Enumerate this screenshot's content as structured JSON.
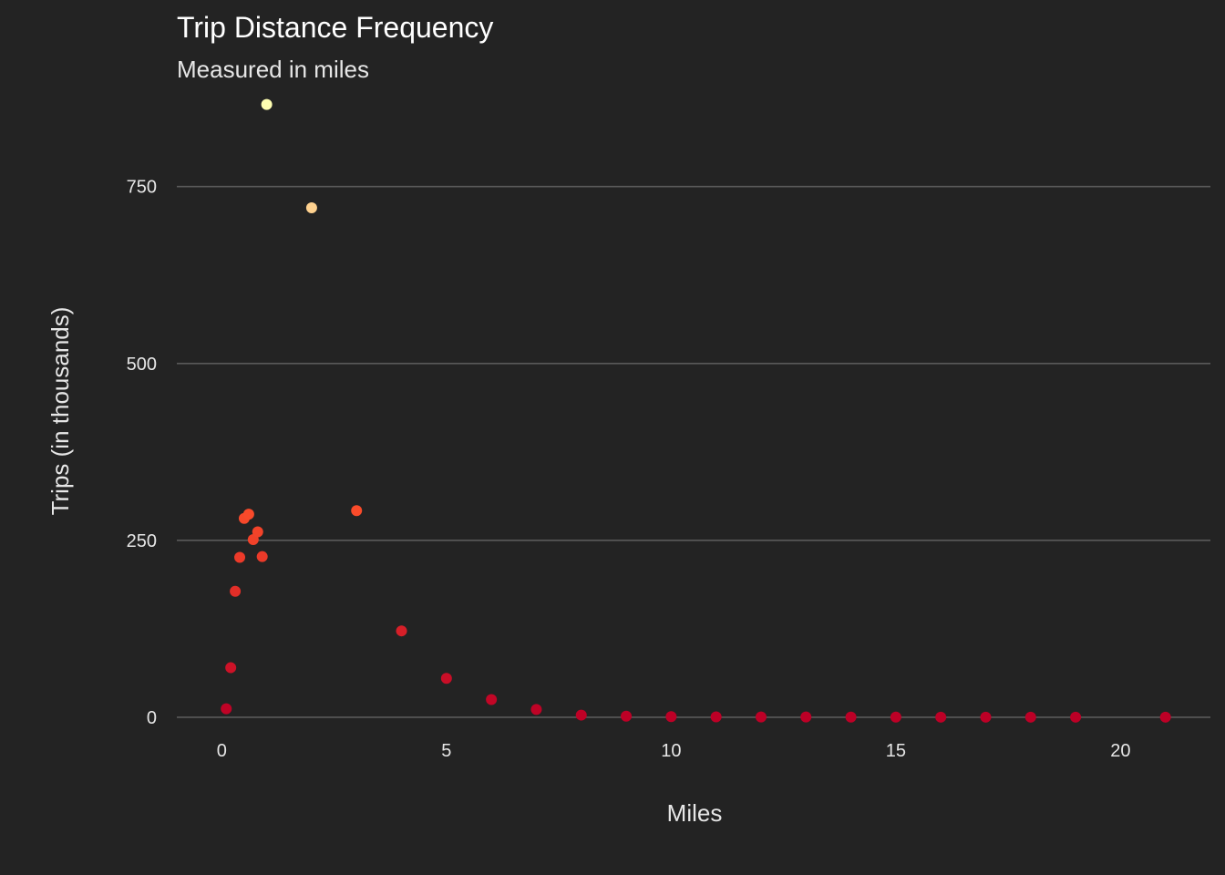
{
  "chart_data": {
    "type": "scatter",
    "title": "Trip Distance Frequency",
    "subtitle": "Measured in miles",
    "xlabel": "Miles",
    "ylabel": "Trips (in thousands)",
    "xlim": [
      -1,
      22
    ],
    "ylim": [
      -4,
      872
    ],
    "x_ticks": [
      0,
      5,
      10,
      15,
      20
    ],
    "y_ticks": [
      0,
      250,
      500,
      750
    ],
    "grid": "horizontal major gridlines",
    "legend": "none",
    "colors": {
      "background": "#232323",
      "grid": "#5a5a5a",
      "text": "#e6e6e6",
      "low": "#bd0026",
      "mid": "#fc4e2a",
      "high": "#ffffb2"
    },
    "points": [
      {
        "x": 0.1,
        "y": 12
      },
      {
        "x": 0.2,
        "y": 70
      },
      {
        "x": 0.3,
        "y": 178
      },
      {
        "x": 0.4,
        "y": 226
      },
      {
        "x": 0.5,
        "y": 281
      },
      {
        "x": 0.6,
        "y": 287
      },
      {
        "x": 0.7,
        "y": 251
      },
      {
        "x": 0.8,
        "y": 262
      },
      {
        "x": 0.9,
        "y": 227
      },
      {
        "x": 1,
        "y": 866
      },
      {
        "x": 2,
        "y": 720
      },
      {
        "x": 3,
        "y": 292
      },
      {
        "x": 4,
        "y": 122
      },
      {
        "x": 5,
        "y": 55
      },
      {
        "x": 6,
        "y": 25
      },
      {
        "x": 7,
        "y": 11
      },
      {
        "x": 8,
        "y": 3
      },
      {
        "x": 9,
        "y": 1.5
      },
      {
        "x": 10,
        "y": 0.8
      },
      {
        "x": 11,
        "y": 0.5
      },
      {
        "x": 12,
        "y": 0.4
      },
      {
        "x": 13,
        "y": 0.3
      },
      {
        "x": 14,
        "y": 0.2
      },
      {
        "x": 15,
        "y": 0.2
      },
      {
        "x": 16,
        "y": 0.1
      },
      {
        "x": 17,
        "y": 0.1
      },
      {
        "x": 18,
        "y": 0.1
      },
      {
        "x": 19,
        "y": 0.1
      },
      {
        "x": 21,
        "y": 0.1
      }
    ]
  }
}
